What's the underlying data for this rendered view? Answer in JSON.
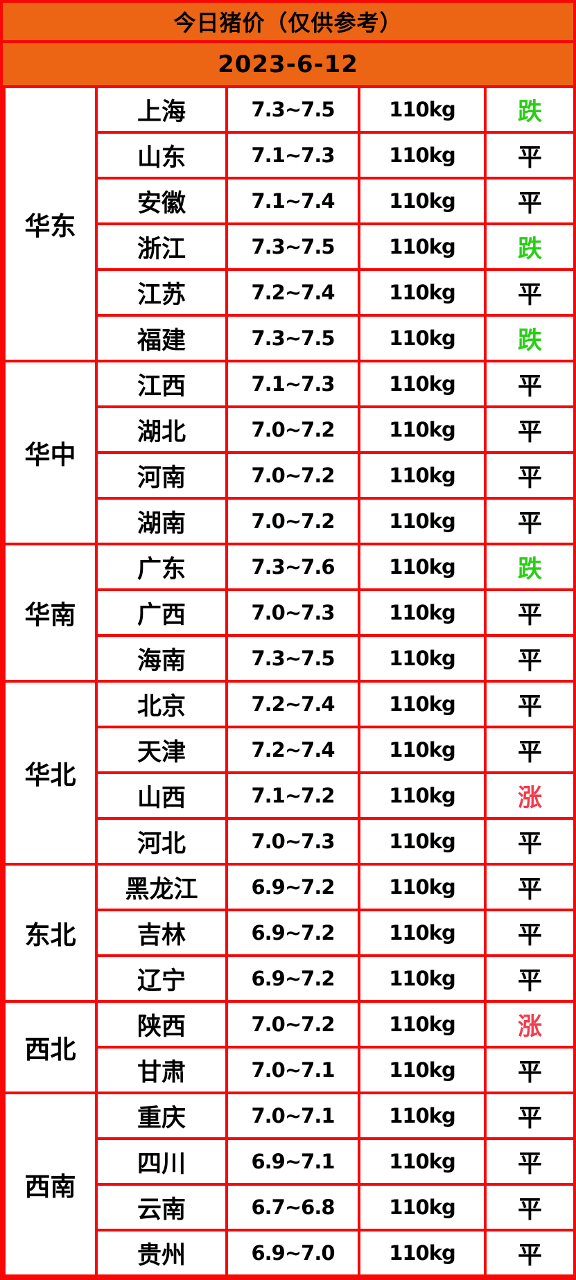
{
  "header": {
    "title": "今日猪价（仅供参考）",
    "date": "2023-6-12"
  },
  "colors": {
    "header_bg": "#EC6514",
    "border_red": "#F90606",
    "cell_bg": "#FFFFFF",
    "text": "#000000",
    "trend_up": "#F43B4C",
    "trend_down": "#2BCE17",
    "trend_flat": "#000000"
  },
  "regions": [
    {
      "name": "华东",
      "rows": [
        {
          "province": "上海",
          "price": "7.3~7.5",
          "weight": "110kg",
          "trend": "跌",
          "trend_type": "down"
        },
        {
          "province": "山东",
          "price": "7.1~7.3",
          "weight": "110kg",
          "trend": "平",
          "trend_type": "flat"
        },
        {
          "province": "安徽",
          "price": "7.1~7.4",
          "weight": "110kg",
          "trend": "平",
          "trend_type": "flat"
        },
        {
          "province": "浙江",
          "price": "7.3~7.5",
          "weight": "110kg",
          "trend": "跌",
          "trend_type": "down"
        },
        {
          "province": "江苏",
          "price": "7.2~7.4",
          "weight": "110kg",
          "trend": "平",
          "trend_type": "flat"
        },
        {
          "province": "福建",
          "price": "7.3~7.5",
          "weight": "110kg",
          "trend": "跌",
          "trend_type": "down"
        }
      ]
    },
    {
      "name": "华中",
      "rows": [
        {
          "province": "江西",
          "price": "7.1~7.3",
          "weight": "110kg",
          "trend": "平",
          "trend_type": "flat"
        },
        {
          "province": "湖北",
          "price": "7.0~7.2",
          "weight": "110kg",
          "trend": "平",
          "trend_type": "flat"
        },
        {
          "province": "河南",
          "price": "7.0~7.2",
          "weight": "110kg",
          "trend": "平",
          "trend_type": "flat"
        },
        {
          "province": "湖南",
          "price": "7.0~7.2",
          "weight": "110kg",
          "trend": "平",
          "trend_type": "flat"
        }
      ]
    },
    {
      "name": "华南",
      "rows": [
        {
          "province": "广东",
          "price": "7.3~7.6",
          "weight": "110kg",
          "trend": "跌",
          "trend_type": "down"
        },
        {
          "province": "广西",
          "price": "7.0~7.3",
          "weight": "110kg",
          "trend": "平",
          "trend_type": "flat"
        },
        {
          "province": "海南",
          "price": "7.3~7.5",
          "weight": "110kg",
          "trend": "平",
          "trend_type": "flat"
        }
      ]
    },
    {
      "name": "华北",
      "rows": [
        {
          "province": "北京",
          "price": "7.2~7.4",
          "weight": "110kg",
          "trend": "平",
          "trend_type": "flat"
        },
        {
          "province": "天津",
          "price": "7.2~7.4",
          "weight": "110kg",
          "trend": "平",
          "trend_type": "flat"
        },
        {
          "province": "山西",
          "price": "7.1~7.2",
          "weight": "110kg",
          "trend": "涨",
          "trend_type": "up"
        },
        {
          "province": "河北",
          "price": "7.0~7.3",
          "weight": "110kg",
          "trend": "平",
          "trend_type": "flat"
        }
      ]
    },
    {
      "name": "东北",
      "rows": [
        {
          "province": "黑龙江",
          "price": "6.9~7.2",
          "weight": "110kg",
          "trend": "平",
          "trend_type": "flat"
        },
        {
          "province": "吉林",
          "price": "6.9~7.2",
          "weight": "110kg",
          "trend": "平",
          "trend_type": "flat"
        },
        {
          "province": "辽宁",
          "price": "6.9~7.2",
          "weight": "110kg",
          "trend": "平",
          "trend_type": "flat"
        }
      ]
    },
    {
      "name": "西北",
      "rows": [
        {
          "province": "陕西",
          "price": "7.0~7.2",
          "weight": "110kg",
          "trend": "涨",
          "trend_type": "up"
        },
        {
          "province": "甘肃",
          "price": "7.0~7.1",
          "weight": "110kg",
          "trend": "平",
          "trend_type": "flat"
        }
      ]
    },
    {
      "name": "西南",
      "rows": [
        {
          "province": "重庆",
          "price": "7.0~7.1",
          "weight": "110kg",
          "trend": "平",
          "trend_type": "flat"
        },
        {
          "province": "四川",
          "price": "6.9~7.1",
          "weight": "110kg",
          "trend": "平",
          "trend_type": "flat"
        },
        {
          "province": "云南",
          "price": "6.7~6.8",
          "weight": "110kg",
          "trend": "平",
          "trend_type": "flat"
        },
        {
          "province": "贵州",
          "price": "6.9~7.0",
          "weight": "110kg",
          "trend": "平",
          "trend_type": "flat"
        }
      ]
    }
  ]
}
